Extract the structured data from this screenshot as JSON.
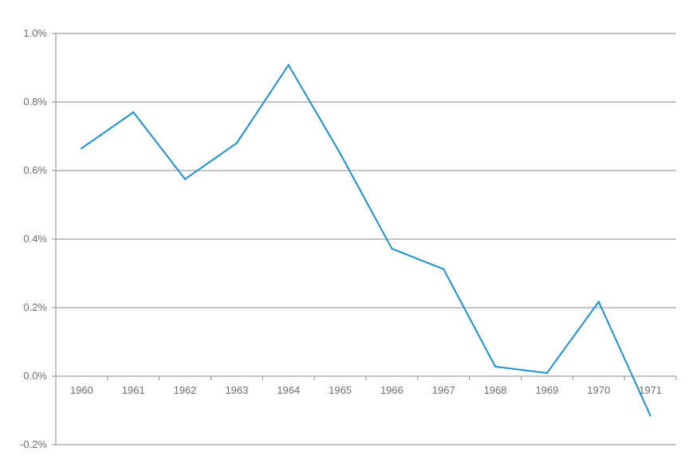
{
  "chart_data": {
    "type": "line",
    "title": "",
    "xlabel": "",
    "ylabel": "",
    "categories": [
      "1960",
      "1961",
      "1962",
      "1963",
      "1964",
      "1965",
      "1966",
      "1967",
      "1968",
      "1969",
      "1970",
      "1971"
    ],
    "series": [
      {
        "values": [
          0.665,
          0.77,
          0.575,
          0.68,
          0.908,
          0.65,
          0.372,
          0.312,
          0.028,
          0.009,
          0.217,
          -0.115
        ],
        "color": "#1a8fd1"
      }
    ],
    "ylim": [
      -0.2,
      1.0
    ],
    "yticks": [
      -0.2,
      0.0,
      0.2,
      0.4,
      0.6,
      0.8,
      1.0
    ],
    "ytick_labels": [
      "-0.2%",
      "0.0%",
      "0.2%",
      "0.4%",
      "0.6%",
      "0.8%",
      "1.0%"
    ],
    "grid": true,
    "legend": "none"
  }
}
